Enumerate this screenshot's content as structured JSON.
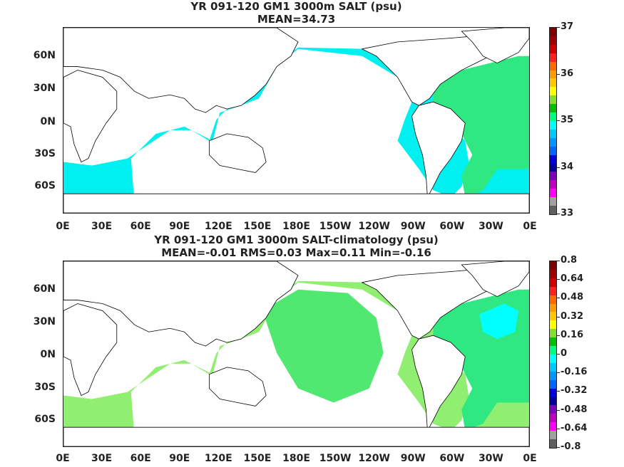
{
  "panels": [
    {
      "title1": "YR 091-120 GM1 3000m SALT (psu)",
      "title2": "MEAN=34.73",
      "colorbar_labels": [
        "37",
        "36",
        "35",
        "34",
        "33"
      ],
      "colors": [
        "#7f0000",
        "#a00000",
        "#d00000",
        "#ff2020",
        "#ff6a00",
        "#ff9a00",
        "#ffc800",
        "#ffff00",
        "#7fe030",
        "#00c000",
        "#00ff80",
        "#00ffff",
        "#00c8ff",
        "#0096ff",
        "#0064ff",
        "#0000dc",
        "#0000a0",
        "#8000c0",
        "#c000c0",
        "#ff00ff",
        "#a0a0a0",
        "#606060"
      ],
      "ocean_color": "#00f0f0",
      "atlantic_color": "#2fe882"
    },
    {
      "title1": "YR 091-120 GM1 3000m SALT-climatology (psu)",
      "title2": "MEAN=-0.01   RMS=0.03   Max=0.11   Min=-0.16",
      "colorbar_labels": [
        "0.8",
        "0.64",
        "0.48",
        "0.32",
        "0.16",
        "0",
        "-0.16",
        "-0.32",
        "-0.48",
        "-0.64",
        "-0.8"
      ],
      "colors": [
        "#7f0000",
        "#a00000",
        "#d00000",
        "#ff2020",
        "#ff6a00",
        "#ff9a00",
        "#ffc800",
        "#ffff00",
        "#7fe030",
        "#00c000",
        "#00ff80",
        "#00ffff",
        "#00c8ff",
        "#0096ff",
        "#0064ff",
        "#0000dc",
        "#0000a0",
        "#8000c0",
        "#c000c0",
        "#ff00ff",
        "#a0a0a0",
        "#606060"
      ],
      "ocean_color": "#90ee70",
      "atlantic_color": "#2fe882"
    }
  ],
  "lat_labels": [
    "60N",
    "30N",
    "0N",
    "30S",
    "60S"
  ],
  "lon_labels": [
    "0E",
    "30E",
    "60E",
    "90E",
    "120E",
    "150E",
    "180E",
    "150W",
    "120W",
    "90W",
    "60W",
    "30W",
    "0E"
  ]
}
